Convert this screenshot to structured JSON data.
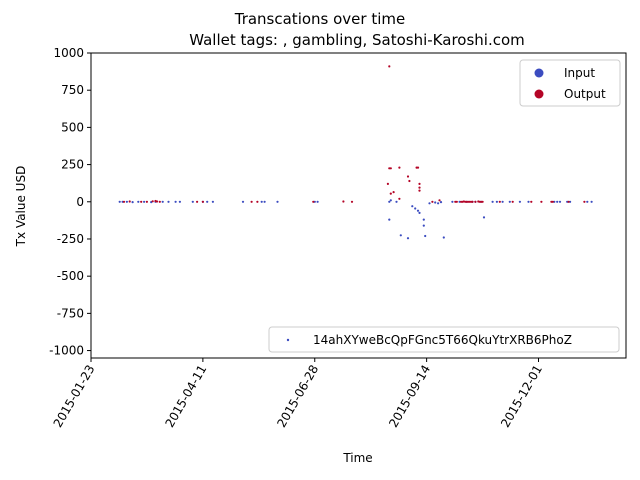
{
  "chart_data": {
    "type": "scatter",
    "title": "Transcations over time",
    "subtitle": "Wallet tags: , gambling, Satoshi-Karoshi.com",
    "xlabel": "Time",
    "ylabel": "Tx Value USD",
    "x_type": "date",
    "xlim": [
      "2015-01-23",
      "2016-01-31"
    ],
    "ylim": [
      -1050,
      1000
    ],
    "x_ticks": [
      "2015-01-23",
      "2015-04-11",
      "2015-06-28",
      "2015-09-14",
      "2015-12-01"
    ],
    "y_ticks": [
      1000,
      750,
      500,
      250,
      0,
      -250,
      -500,
      -750,
      -1000
    ],
    "grid": false,
    "colors": {
      "input": "#3b4cc0",
      "output": "#b40426"
    },
    "legend_position": "top-right",
    "legend": [
      {
        "label": "Input",
        "color": "#3b4cc0"
      },
      {
        "label": "Output",
        "color": "#b40426"
      }
    ],
    "address_legend": {
      "position": "bottom-right",
      "label": "14ahXYweBcQpFGnc5T66QkuYtrXRB6PhoZ",
      "color": "#3b4cc0"
    },
    "series": [
      {
        "name": "Input",
        "color": "#3b4cc0",
        "points": [
          [
            "2015-02-12",
            0
          ],
          [
            "2015-02-14",
            0
          ],
          [
            "2015-02-17",
            0
          ],
          [
            "2015-02-21",
            -2
          ],
          [
            "2015-02-25",
            0
          ],
          [
            "2015-03-01",
            0
          ],
          [
            "2015-03-06",
            -2
          ],
          [
            "2015-03-09",
            0
          ],
          [
            "2015-03-14",
            0
          ],
          [
            "2015-03-18",
            0
          ],
          [
            "2015-03-23",
            0
          ],
          [
            "2015-03-26",
            0
          ],
          [
            "2015-04-04",
            0
          ],
          [
            "2015-04-11",
            0
          ],
          [
            "2015-04-14",
            0
          ],
          [
            "2015-04-18",
            0
          ],
          [
            "2015-05-09",
            0
          ],
          [
            "2015-05-22",
            0
          ],
          [
            "2015-05-24",
            0
          ],
          [
            "2015-06-02",
            0
          ],
          [
            "2015-06-28",
            0
          ],
          [
            "2015-06-30",
            0
          ],
          [
            "2015-08-19",
            -120
          ],
          [
            "2015-08-19",
            0
          ],
          [
            "2015-08-20",
            10
          ],
          [
            "2015-08-24",
            0
          ],
          [
            "2015-08-27",
            -225
          ],
          [
            "2015-09-01",
            -245
          ],
          [
            "2015-09-04",
            -30
          ],
          [
            "2015-09-06",
            -45
          ],
          [
            "2015-09-08",
            -60
          ],
          [
            "2015-09-09",
            -75
          ],
          [
            "2015-09-12",
            -120
          ],
          [
            "2015-09-12",
            -160
          ],
          [
            "2015-09-13",
            -230
          ],
          [
            "2015-09-16",
            -10
          ],
          [
            "2015-09-20",
            -5
          ],
          [
            "2015-09-22",
            -10
          ],
          [
            "2015-09-24",
            -2
          ],
          [
            "2015-09-26",
            -240
          ],
          [
            "2015-10-02",
            0
          ],
          [
            "2015-10-07",
            0
          ],
          [
            "2015-10-12",
            0
          ],
          [
            "2015-10-16",
            0
          ],
          [
            "2015-10-18",
            0
          ],
          [
            "2015-10-22",
            0
          ],
          [
            "2015-10-24",
            -105
          ],
          [
            "2015-10-30",
            0
          ],
          [
            "2015-11-02",
            0
          ],
          [
            "2015-11-06",
            0
          ],
          [
            "2015-11-11",
            0
          ],
          [
            "2015-11-18",
            0
          ],
          [
            "2015-11-24",
            0
          ],
          [
            "2015-12-12",
            0
          ],
          [
            "2015-12-14",
            0
          ],
          [
            "2015-12-16",
            0
          ],
          [
            "2015-12-21",
            0
          ],
          [
            "2015-12-23",
            0
          ],
          [
            "2016-01-04",
            0
          ],
          [
            "2016-01-07",
            0
          ]
        ]
      },
      {
        "name": "Output",
        "color": "#b40426",
        "points": [
          [
            "2015-02-15",
            0
          ],
          [
            "2015-02-19",
            2
          ],
          [
            "2015-02-27",
            0
          ],
          [
            "2015-03-03",
            0
          ],
          [
            "2015-03-07",
            3
          ],
          [
            "2015-03-09",
            5
          ],
          [
            "2015-03-10",
            2
          ],
          [
            "2015-03-12",
            0
          ],
          [
            "2015-04-07",
            0
          ],
          [
            "2015-04-11",
            0
          ],
          [
            "2015-05-15",
            0
          ],
          [
            "2015-05-19",
            0
          ],
          [
            "2015-06-27",
            0
          ],
          [
            "2015-07-18",
            2
          ],
          [
            "2015-07-24",
            0
          ],
          [
            "2015-08-18",
            120
          ],
          [
            "2015-08-19",
            910
          ],
          [
            "2015-08-19",
            225
          ],
          [
            "2015-08-20",
            225
          ],
          [
            "2015-08-20",
            55
          ],
          [
            "2015-08-22",
            65
          ],
          [
            "2015-08-26",
            230
          ],
          [
            "2015-08-26",
            20
          ],
          [
            "2015-09-01",
            170
          ],
          [
            "2015-09-02",
            140
          ],
          [
            "2015-09-07",
            230
          ],
          [
            "2015-09-08",
            230
          ],
          [
            "2015-09-09",
            120
          ],
          [
            "2015-09-09",
            95
          ],
          [
            "2015-09-09",
            75
          ],
          [
            "2015-09-18",
            0
          ],
          [
            "2015-09-23",
            10
          ],
          [
            "2015-10-04",
            0
          ],
          [
            "2015-10-05",
            0
          ],
          [
            "2015-10-08",
            0
          ],
          [
            "2015-10-09",
            0
          ],
          [
            "2015-10-10",
            2
          ],
          [
            "2015-10-11",
            0
          ],
          [
            "2015-10-12",
            0
          ],
          [
            "2015-10-13",
            0
          ],
          [
            "2015-10-14",
            0
          ],
          [
            "2015-10-15",
            0
          ],
          [
            "2015-10-16",
            0
          ],
          [
            "2015-10-18",
            0
          ],
          [
            "2015-10-20",
            2
          ],
          [
            "2015-10-21",
            0
          ],
          [
            "2015-10-22",
            0
          ],
          [
            "2015-10-23",
            0
          ],
          [
            "2015-11-04",
            0
          ],
          [
            "2015-11-13",
            0
          ],
          [
            "2015-11-26",
            0
          ],
          [
            "2015-12-03",
            0
          ],
          [
            "2015-12-10",
            0
          ],
          [
            "2015-12-11",
            0
          ],
          [
            "2015-12-22",
            0
          ],
          [
            "2016-01-02",
            0
          ]
        ]
      }
    ]
  }
}
